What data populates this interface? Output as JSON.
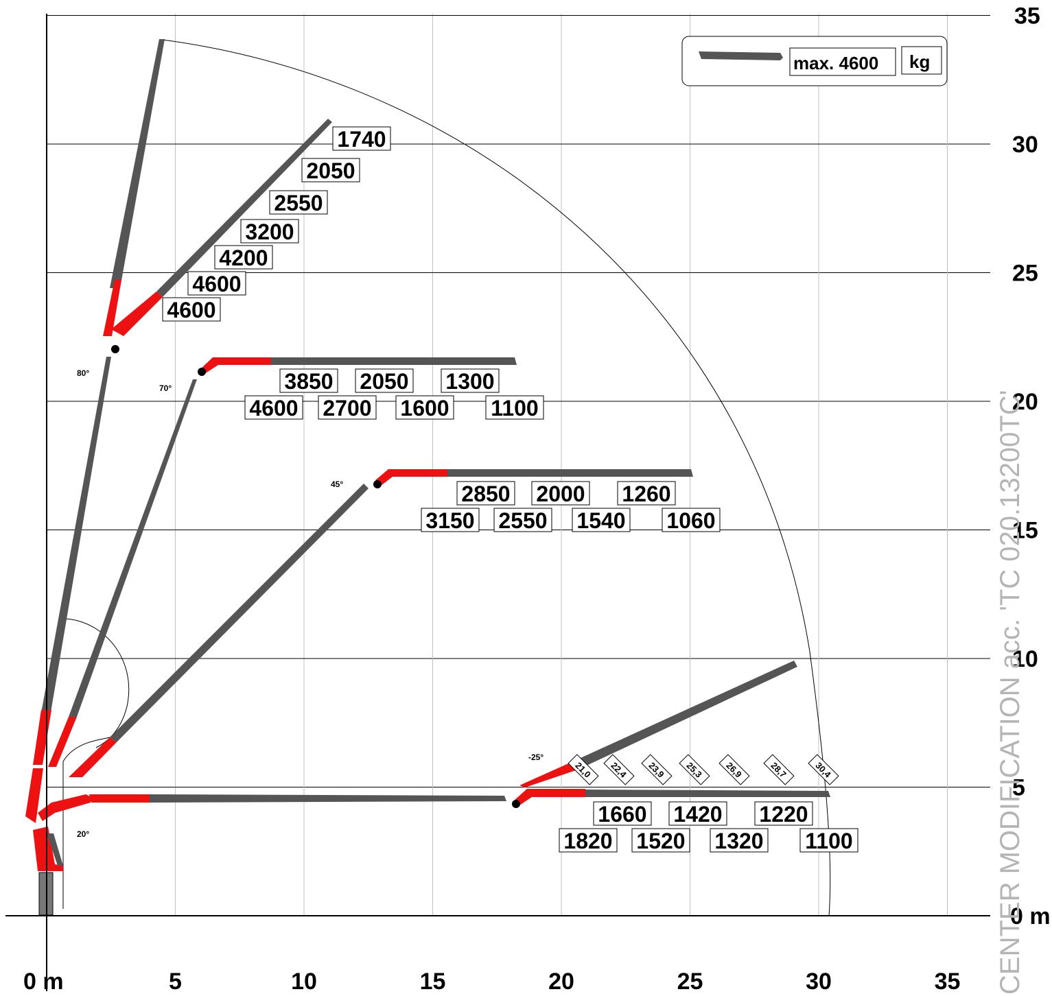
{
  "colors": {
    "boom_grey": "#555555",
    "boom_red": "#ee1111",
    "grid": "#c0c0c0",
    "axis": "#000000",
    "watermark": "#b4b4b4"
  },
  "axes": {
    "x_labels": [
      "0 m",
      "5",
      "10",
      "15",
      "20",
      "25",
      "30",
      "35"
    ],
    "y_labels": [
      "0 m",
      "5",
      "10",
      "15",
      "20",
      "25",
      "30",
      "35"
    ],
    "x_range": [
      0,
      35
    ],
    "y_range": [
      0,
      35
    ],
    "unit": "m"
  },
  "legend": {
    "icon": "boom-icon",
    "capacity": "max. 4600",
    "unit": "kg"
  },
  "watermark": "CENTER MODIFICATION  acc.  'TC 020.13200TC'",
  "angles": [
    "80°",
    "70°",
    "45°",
    "-25°",
    "20°"
  ],
  "load_tables": {
    "boom_80": [
      "1740",
      "2050",
      "2550",
      "3200",
      "4200",
      "4600",
      "4600"
    ],
    "boom_70_upper": [
      "3850",
      "2050",
      "1300"
    ],
    "boom_70_lower": [
      "4600",
      "2700",
      "1600",
      "1100"
    ],
    "boom_45_upper": [
      "2850",
      "2000",
      "1260"
    ],
    "boom_45_lower": [
      "3150",
      "2550",
      "1540",
      "1060"
    ],
    "boom_20_upper": [
      "1660",
      "1420",
      "1220"
    ],
    "boom_20_lower": [
      "1820",
      "1520",
      "1320",
      "1100"
    ]
  },
  "outreach_labels": [
    "21,0",
    "22,4",
    "23,9",
    "25,3",
    "26,9",
    "28,7",
    "30,4"
  ]
}
